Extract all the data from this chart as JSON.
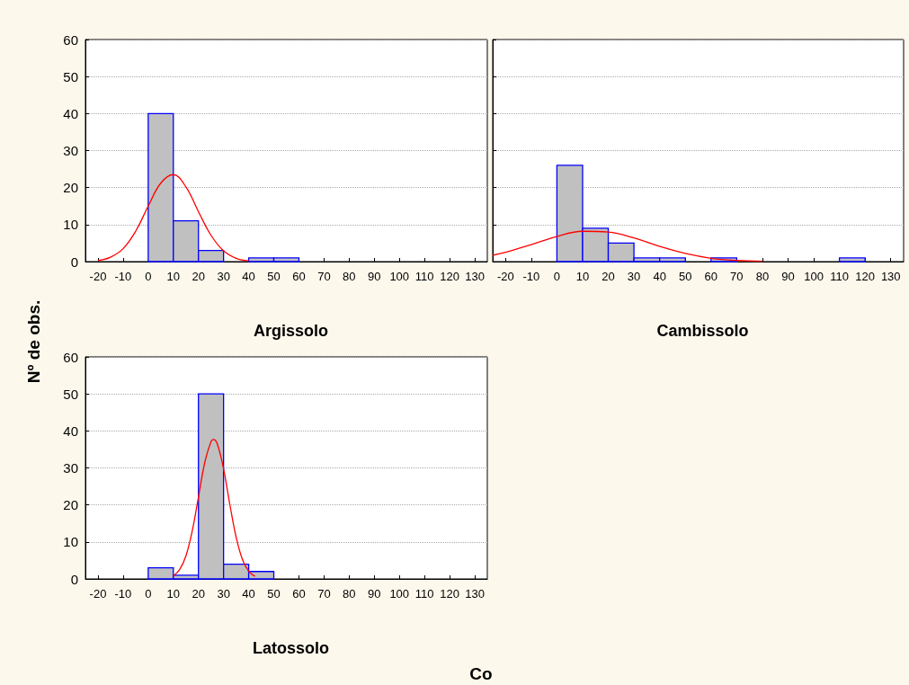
{
  "chart_data": [
    {
      "type": "histogram",
      "title": "Argissolo",
      "ylabel": "Nº de obs.",
      "xlim": [
        -25,
        135
      ],
      "xticks": [
        -20,
        -10,
        0,
        10,
        20,
        30,
        40,
        50,
        60,
        70,
        80,
        90,
        100,
        110,
        120,
        130
      ],
      "ylim": [
        0,
        60
      ],
      "yticks": [
        0,
        10,
        20,
        30,
        40,
        50,
        60
      ],
      "grid": "y",
      "series": [
        {
          "type": "histogram",
          "color": "#c0c0c0",
          "bins": [
            -20,
            -10,
            0,
            10,
            20,
            30,
            40,
            50,
            60,
            70,
            80,
            90,
            100,
            110,
            120,
            130
          ],
          "values": [
            0,
            0,
            40,
            11,
            3,
            0,
            1,
            1,
            0,
            0,
            0,
            0,
            0,
            0,
            0
          ]
        },
        {
          "type": "line",
          "color": "#ff0000",
          "x": [
            -20,
            -15,
            -10,
            -5,
            0,
            5,
            10,
            15,
            20,
            25,
            30,
            35,
            40
          ],
          "values": [
            0.3,
            1.2,
            3.5,
            8.2,
            15.0,
            21.2,
            23.5,
            20.2,
            13.5,
            7.1,
            2.9,
            0.9,
            0.2
          ]
        }
      ]
    },
    {
      "type": "histogram",
      "title": "Cambissolo",
      "xlim": [
        -25,
        135
      ],
      "xticks": [
        -20,
        -10,
        0,
        10,
        20,
        30,
        40,
        50,
        60,
        70,
        80,
        90,
        100,
        110,
        120,
        130
      ],
      "ylim": [
        0,
        60
      ],
      "yticks": [
        0,
        10,
        20,
        30,
        40,
        50,
        60
      ],
      "grid": "y",
      "tick_labels": "x",
      "series": [
        {
          "type": "histogram",
          "color": "#c0c0c0",
          "bins": [
            -20,
            -10,
            0,
            10,
            20,
            30,
            40,
            50,
            60,
            70,
            80,
            90,
            100,
            110,
            120,
            130
          ],
          "values": [
            0,
            0,
            26,
            9,
            5,
            1,
            1,
            0,
            1,
            0,
            0,
            0,
            0,
            1,
            0
          ]
        },
        {
          "type": "line",
          "color": "#ff0000",
          "x": [
            -25,
            -20,
            -10,
            0,
            10,
            20,
            30,
            40,
            50,
            60,
            70,
            80
          ],
          "values": [
            1.7,
            2.5,
            4.6,
            6.8,
            8.2,
            8.0,
            6.4,
            4.1,
            2.2,
            0.9,
            0.3,
            0.1
          ]
        }
      ]
    },
    {
      "type": "histogram",
      "title": "Latossolo",
      "xlabel": "Co",
      "xlim": [
        -25,
        135
      ],
      "xticks": [
        -20,
        -10,
        0,
        10,
        20,
        30,
        40,
        50,
        60,
        70,
        80,
        90,
        100,
        110,
        120,
        130
      ],
      "ylim": [
        0,
        60
      ],
      "yticks": [
        0,
        10,
        20,
        30,
        40,
        50,
        60
      ],
      "grid": "y",
      "series": [
        {
          "type": "histogram",
          "color": "#c0c0c0",
          "bins": [
            -20,
            -10,
            0,
            10,
            20,
            30,
            40,
            50,
            60,
            70,
            80,
            90,
            100,
            110,
            120,
            130
          ],
          "values": [
            0,
            0,
            3,
            1,
            50,
            4,
            2,
            0,
            0,
            0,
            0,
            0,
            0,
            0,
            0
          ]
        },
        {
          "type": "line",
          "color": "#ff0000",
          "x": [
            10,
            12.5,
            15,
            17.5,
            20,
            22.5,
            25,
            26,
            27.5,
            30,
            32.5,
            35,
            37.5,
            40,
            42.5
          ],
          "values": [
            0.8,
            2.5,
            6.2,
            12.9,
            22.1,
            31.4,
            37.1,
            37.7,
            36.5,
            29.7,
            20.1,
            11.3,
            5.3,
            2.1,
            0.7
          ]
        }
      ]
    }
  ]
}
